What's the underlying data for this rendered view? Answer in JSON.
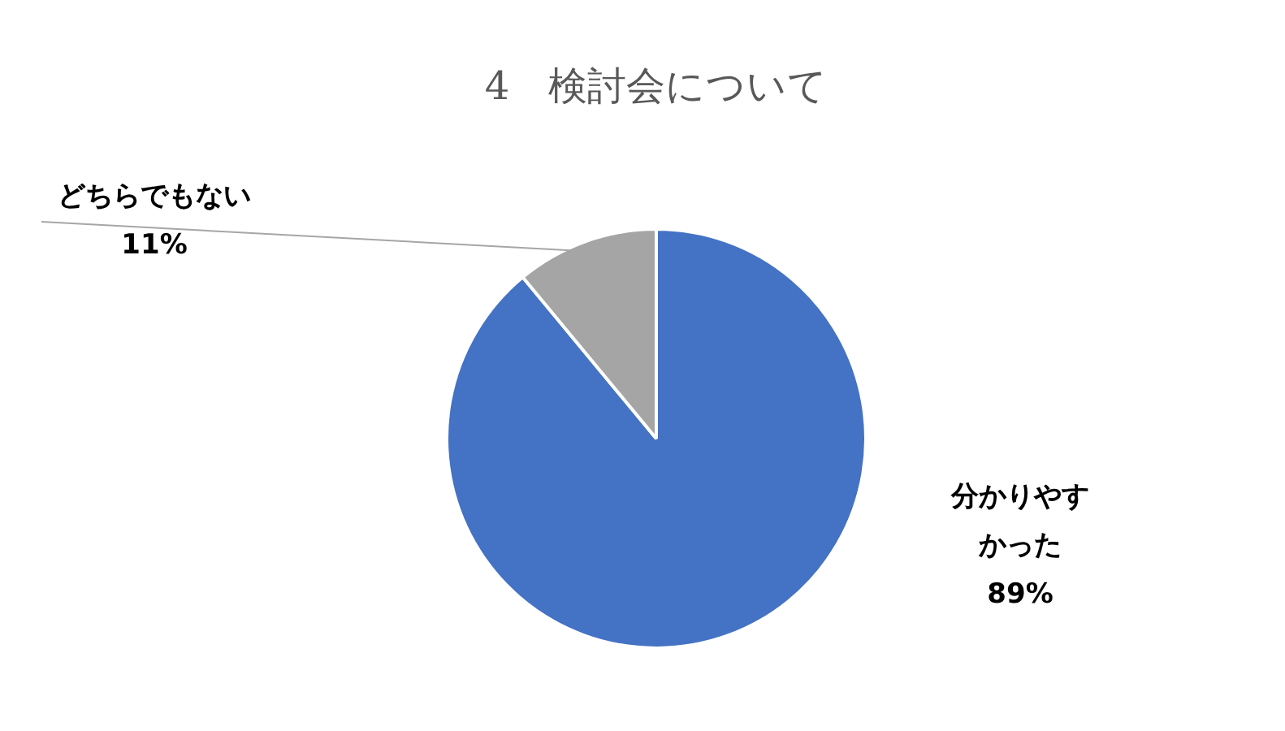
{
  "chart_data": {
    "type": "pie",
    "title": "4　検討会について",
    "categories": [
      "分かりやすかった",
      "どちらでもない"
    ],
    "values": [
      89,
      11
    ],
    "colors": [
      "#4472c4",
      "#a5a5a5"
    ],
    "value_labels": [
      "89%",
      "11%"
    ],
    "legend": false
  }
}
